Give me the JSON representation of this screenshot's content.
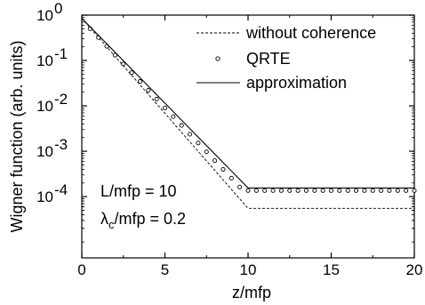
{
  "chart_data": {
    "type": "line",
    "xlabel": "z/mfp",
    "ylabel": "Wigner function (arb. units)",
    "xlim": [
      0,
      20
    ],
    "ylim_log10": [
      -5.35,
      0.0
    ],
    "y_scale": "log",
    "x_ticks": [
      0,
      5,
      10,
      15,
      20
    ],
    "x_tick_labels": [
      "0",
      "5",
      "10",
      "15",
      "20"
    ],
    "y_ticks": [
      1,
      0.1,
      0.01,
      0.001,
      0.0001
    ],
    "y_tick_labels": [
      {
        "base": "10",
        "exp": "0"
      },
      {
        "base": "10",
        "exp": "-1"
      },
      {
        "base": "10",
        "exp": "-2"
      },
      {
        "base": "10",
        "exp": "-3"
      },
      {
        "base": "10",
        "exp": "-4"
      }
    ],
    "legend_position": "top-right",
    "grid": false,
    "series": [
      {
        "name": "without coherence",
        "style": "dashed",
        "x": [
          0,
          10,
          20
        ],
        "y": [
          0.85,
          5.5e-05,
          5.5e-05
        ]
      },
      {
        "name": "QRTE",
        "style": "circles",
        "x": [
          0.5,
          1,
          1.5,
          2,
          2.5,
          3,
          3.5,
          4,
          4.5,
          5,
          5.5,
          6,
          6.5,
          7,
          7.5,
          8,
          8.5,
          9,
          9.5,
          10,
          10.5,
          11,
          11.5,
          12,
          12.5,
          13,
          13.5,
          14,
          14.5,
          15,
          15.5,
          16,
          16.5,
          17,
          17.5,
          18,
          18.5,
          19,
          19.5,
          20
        ],
        "y": [
          0.5,
          0.32,
          0.205,
          0.131,
          0.084,
          0.054,
          0.0345,
          0.022,
          0.0141,
          0.009,
          0.0058,
          0.0037,
          0.00237,
          0.00152,
          0.00097,
          0.00062,
          0.000397,
          0.000254,
          0.000163,
          0.000136,
          0.000136,
          0.000136,
          0.000136,
          0.000136,
          0.000136,
          0.000136,
          0.000136,
          0.000136,
          0.000136,
          0.000136,
          0.000136,
          0.000136,
          0.000136,
          0.000136,
          0.000136,
          0.000136,
          0.000136,
          0.000136,
          0.000136,
          0.000136
        ]
      },
      {
        "name": "approximation",
        "style": "solid",
        "x": [
          0,
          10,
          20
        ],
        "y": [
          0.85,
          0.000155,
          0.000155
        ]
      }
    ],
    "annotations": [
      {
        "text": "L/mfp = 10"
      },
      {
        "symbol": "λ",
        "sub": "c",
        "rest": "/mfp = 0.2"
      }
    ]
  }
}
